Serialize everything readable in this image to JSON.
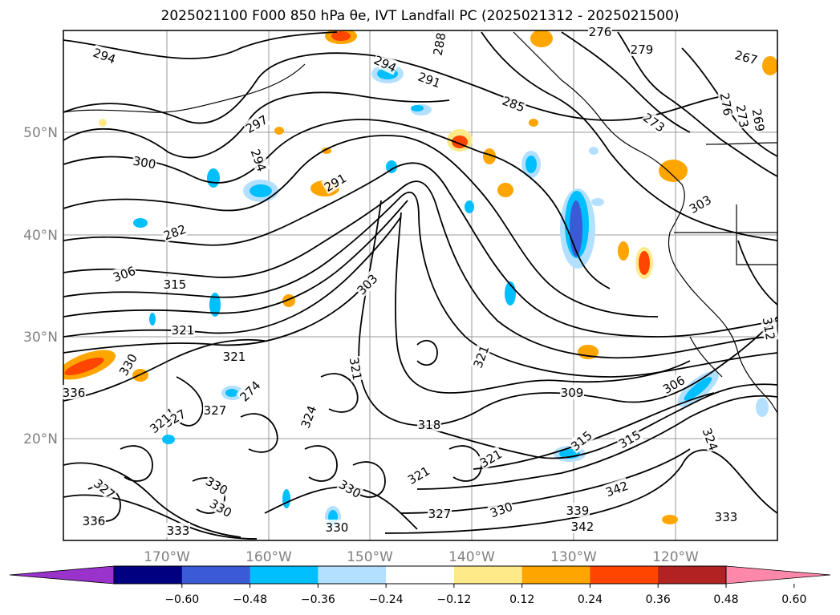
{
  "title": "2025021100 F000 850 hPa θe, IVT Landfall PC (2025021312 - 2025021500)",
  "lat_labels": [
    "50°N",
    "40°N",
    "30°N",
    "20°N"
  ],
  "lon_labels": [
    "170°W",
    "160°W",
    "150°W",
    "140°W",
    "130°W",
    "120°W"
  ],
  "colorbar": {
    "colors": [
      "#9933cc",
      "#000080",
      "#3b5bd6",
      "#00bfff",
      "#b3e0ff",
      "#ffffff",
      "#ffea8a",
      "#ffa500",
      "#ff4500",
      "#b22222",
      "#ff88aa"
    ],
    "extend_min_color": "#9933cc",
    "extend_max_color": "#ff88aa",
    "ticks": [
      "−0.60",
      "−0.48",
      "−0.36",
      "−0.24",
      "−0.12",
      "0.12",
      "0.24",
      "0.36",
      "0.48",
      "0.60"
    ]
  },
  "contour_labels": [
    "294",
    "288",
    "276",
    "279",
    "267",
    "291",
    "285",
    "273",
    "276",
    "273",
    "269",
    "294",
    "297",
    "294",
    "291",
    "300",
    "282",
    "303",
    "306",
    "315",
    "303",
    "321",
    "321",
    "330",
    "321",
    "321",
    "274",
    "336",
    "324",
    "327",
    "327",
    "309",
    "306",
    "312",
    "318",
    "315",
    "315",
    "324",
    "321",
    "321",
    "327",
    "330",
    "330",
    "327",
    "336",
    "339",
    "342",
    "342",
    "333",
    "321",
    "330",
    "330",
    "333",
    "330"
  ]
}
